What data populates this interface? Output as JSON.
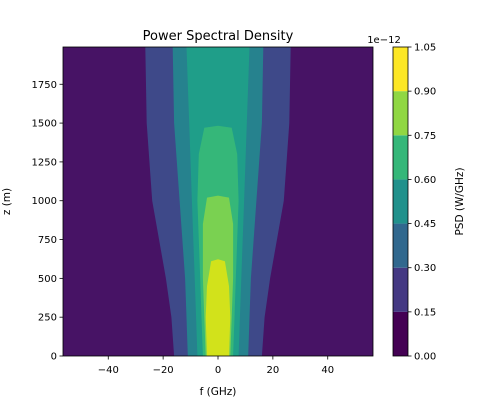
{
  "chart_data": {
    "type": "heatmap",
    "style": "filled-contour",
    "title": "Power Spectral Density",
    "xlabel": "f (GHz)",
    "ylabel": "z (m)",
    "colorbar_label": "PSD (W/GHz)",
    "colorbar_offset_label": "1e−12",
    "colormap": "viridis",
    "xlim": [
      -56.5,
      56.5
    ],
    "ylim": [
      0,
      1990
    ],
    "xticks": [
      -40,
      -20,
      0,
      20,
      40
    ],
    "xtick_labels": [
      "−40",
      "−20",
      "0",
      "20",
      "40"
    ],
    "yticks": [
      0,
      250,
      500,
      750,
      1000,
      1250,
      1500,
      1750
    ],
    "ytick_labels": [
      "0",
      "250",
      "500",
      "750",
      "1000",
      "1250",
      "1500",
      "1750"
    ],
    "levels": [
      0.0,
      0.15,
      0.3,
      0.45,
      0.6,
      0.75,
      0.9,
      1.05
    ],
    "level_labels": [
      "0.00",
      "0.15",
      "0.30",
      "0.45",
      "0.60",
      "0.75",
      "0.90",
      "1.05"
    ],
    "level_colors": [
      "#440154",
      "#443983",
      "#31688e",
      "#21918c",
      "#35b779",
      "#90d743",
      "#fde725"
    ],
    "colors": {
      "band_0": "#471365",
      "band_1": "#3e4989",
      "band_2": "#26828e",
      "band_3": "#1f9e89",
      "band_4": "#35b779",
      "band_5": "#7ad151",
      "band_6": "#d2e21b"
    },
    "contour_boundaries": [
      {
        "level": 0.15,
        "points": [
          [
            26.5,
            1990
          ],
          [
            26,
            1500
          ],
          [
            24,
            1000
          ],
          [
            19,
            500
          ],
          [
            17,
            250
          ],
          [
            16,
            0
          ]
        ]
      },
      {
        "level": 0.3,
        "points": [
          [
            16.5,
            1990
          ],
          [
            16,
            1500
          ],
          [
            14,
            1000
          ],
          [
            12,
            500
          ],
          [
            11.5,
            250
          ],
          [
            11,
            0
          ]
        ]
      },
      {
        "level": 0.45,
        "points": [
          [
            11.5,
            1990
          ],
          [
            10.5,
            1500
          ],
          [
            9.5,
            1000
          ],
          [
            8.5,
            500
          ],
          [
            8,
            250
          ],
          [
            7.5,
            0
          ]
        ]
      },
      {
        "level": 0.6,
        "points": [
          [
            5,
            1470
          ],
          [
            7,
            1300
          ],
          [
            7.5,
            1000
          ],
          [
            6.5,
            500
          ],
          [
            6,
            250
          ],
          [
            5.5,
            0
          ]
        ]
      },
      {
        "level": 0.75,
        "points": [
          [
            4,
            1020
          ],
          [
            5.5,
            850
          ],
          [
            5.5,
            500
          ],
          [
            5,
            250
          ],
          [
            4.5,
            0
          ]
        ]
      },
      {
        "level": 0.9,
        "points": [
          [
            2.5,
            610
          ],
          [
            4,
            450
          ],
          [
            4.5,
            250
          ],
          [
            4,
            0
          ]
        ]
      }
    ]
  }
}
